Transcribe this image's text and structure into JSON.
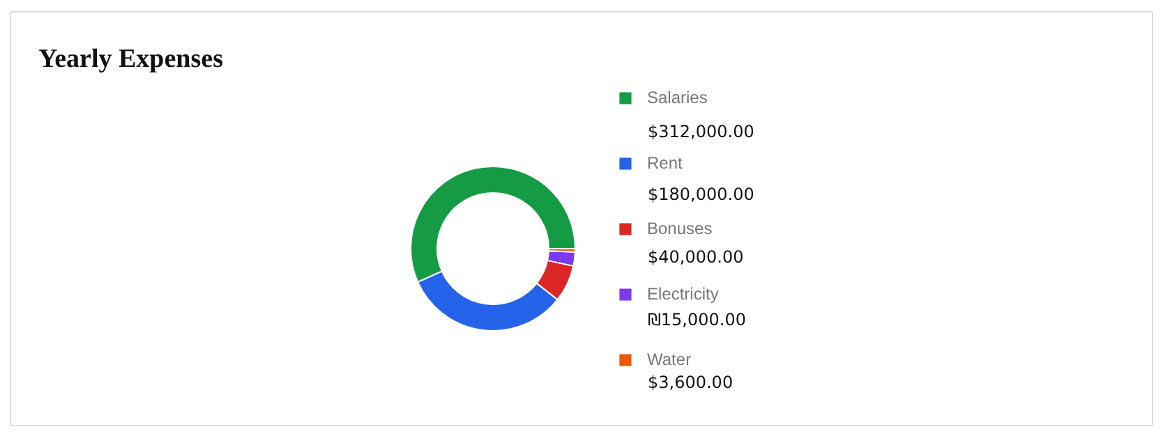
{
  "chart_data": {
    "type": "donut",
    "title": "Yearly Expenses",
    "categories": [
      "Salaries",
      "Rent",
      "Bonuses",
      "Electricity",
      "Water"
    ],
    "values": [
      312000,
      180000,
      40000,
      15000,
      3600
    ],
    "colors": [
      "#169b45",
      "#2563eb",
      "#dc2626",
      "#7c3aed",
      "#ea580c"
    ],
    "value_labels": [
      "$312,000.00",
      "$180,000.00",
      "$40,000.00",
      "₪15,000.00",
      "$3,600.00"
    ],
    "legend": "right"
  }
}
